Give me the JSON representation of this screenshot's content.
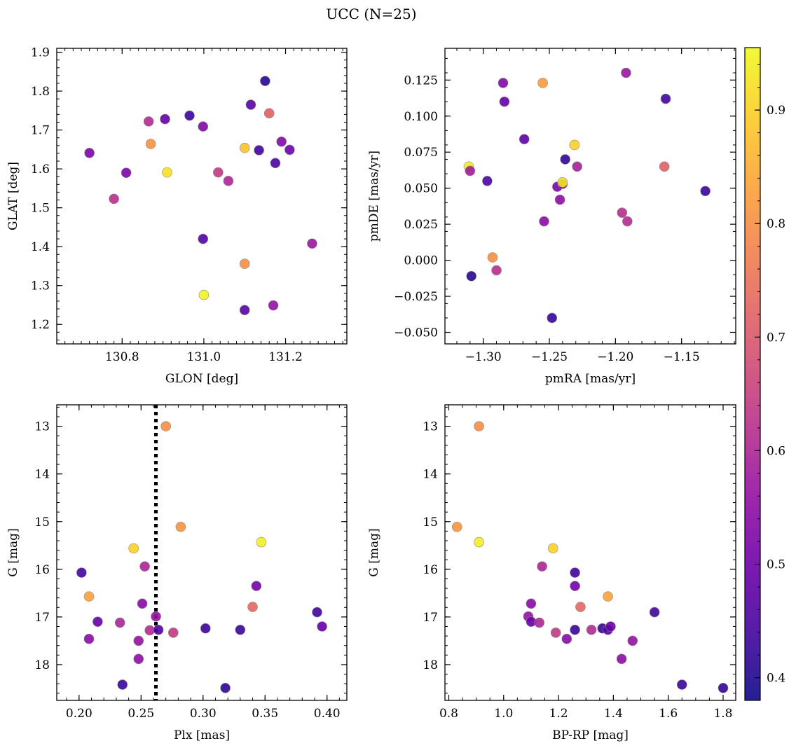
{
  "figure_title": "UCC (N=25)",
  "colorbar": {
    "range": [
      0.38,
      0.955
    ],
    "ticks": [
      0.4,
      0.5,
      0.6,
      0.7,
      0.8,
      0.9
    ],
    "tick_labels": [
      "0.4",
      "0.5",
      "0.6",
      "0.7",
      "0.8",
      "0.9"
    ],
    "colormap": "plasma",
    "point_edge_color": "#8c8c8c"
  },
  "chart_data": [
    {
      "type": "scatter",
      "xlabel": "GLON [deg]",
      "ylabel": "GLAT [deg]",
      "xlim": [
        130.64,
        131.35
      ],
      "ylim": [
        1.15,
        1.91
      ],
      "y_inverted": false,
      "x_ticks": [
        130.8,
        131.0,
        131.2
      ],
      "x_tick_labels": [
        "130.8",
        "131.0",
        "131.2"
      ],
      "y_ticks": [
        1.2,
        1.3,
        1.4,
        1.5,
        1.6,
        1.7,
        1.8,
        1.9
      ],
      "y_tick_labels": [
        "1.2",
        "1.3",
        "1.4",
        "1.5",
        "1.6",
        "1.7",
        "1.8",
        "1.9"
      ],
      "points": [
        {
          "x": 130.72,
          "y": 1.641,
          "c": 0.52
        },
        {
          "x": 130.78,
          "y": 1.523,
          "c": 0.62
        },
        {
          "x": 130.81,
          "y": 1.59,
          "c": 0.52
        },
        {
          "x": 130.865,
          "y": 1.722,
          "c": 0.61
        },
        {
          "x": 130.87,
          "y": 1.664,
          "c": 0.81
        },
        {
          "x": 130.905,
          "y": 1.728,
          "c": 0.49
        },
        {
          "x": 130.91,
          "y": 1.591,
          "c": 0.92
        },
        {
          "x": 130.965,
          "y": 1.737,
          "c": 0.43
        },
        {
          "x": 130.998,
          "y": 1.709,
          "c": 0.53
        },
        {
          "x": 130.998,
          "y": 1.42,
          "c": 0.46
        },
        {
          "x": 131.0,
          "y": 1.276,
          "c": 0.945
        },
        {
          "x": 131.035,
          "y": 1.591,
          "c": 0.64
        },
        {
          "x": 131.06,
          "y": 1.569,
          "c": 0.6
        },
        {
          "x": 131.1,
          "y": 1.654,
          "c": 0.88
        },
        {
          "x": 131.1,
          "y": 1.356,
          "c": 0.8
        },
        {
          "x": 131.1,
          "y": 1.237,
          "c": 0.47
        },
        {
          "x": 131.115,
          "y": 1.765,
          "c": 0.47
        },
        {
          "x": 131.135,
          "y": 1.648,
          "c": 0.44
        },
        {
          "x": 131.15,
          "y": 1.826,
          "c": 0.41
        },
        {
          "x": 131.16,
          "y": 1.743,
          "c": 0.72
        },
        {
          "x": 131.17,
          "y": 1.249,
          "c": 0.56
        },
        {
          "x": 131.175,
          "y": 1.615,
          "c": 0.45
        },
        {
          "x": 131.19,
          "y": 1.67,
          "c": 0.53
        },
        {
          "x": 131.21,
          "y": 1.649,
          "c": 0.5
        },
        {
          "x": 131.265,
          "y": 1.408,
          "c": 0.57
        }
      ]
    },
    {
      "type": "scatter",
      "xlabel": "pmRA [mas/yr]",
      "ylabel": "pmDE [mas/yr]",
      "xlim": [
        -1.329,
        -1.109
      ],
      "ylim": [
        -0.058,
        0.147
      ],
      "y_inverted": false,
      "x_ticks": [
        -1.3,
        -1.25,
        -1.2,
        -1.15
      ],
      "x_tick_labels": [
        "−1.30",
        "−1.25",
        "−1.20",
        "−1.15"
      ],
      "y_ticks": [
        -0.05,
        -0.025,
        0.0,
        0.025,
        0.05,
        0.075,
        0.1,
        0.125
      ],
      "y_tick_labels": [
        "−0.050",
        "−0.025",
        "0.000",
        "0.025",
        "0.050",
        "0.075",
        "0.100",
        "0.125"
      ],
      "points": [
        {
          "x": -1.311,
          "y": 0.065,
          "c": 0.935
        },
        {
          "x": -1.31,
          "y": 0.062,
          "c": 0.58
        },
        {
          "x": -1.309,
          "y": -0.011,
          "c": 0.41
        },
        {
          "x": -1.297,
          "y": 0.055,
          "c": 0.45
        },
        {
          "x": -1.293,
          "y": 0.002,
          "c": 0.8
        },
        {
          "x": -1.29,
          "y": -0.007,
          "c": 0.62
        },
        {
          "x": -1.285,
          "y": 0.123,
          "c": 0.53
        },
        {
          "x": -1.284,
          "y": 0.11,
          "c": 0.49
        },
        {
          "x": -1.269,
          "y": 0.084,
          "c": 0.48
        },
        {
          "x": -1.255,
          "y": 0.123,
          "c": 0.82
        },
        {
          "x": -1.254,
          "y": 0.027,
          "c": 0.55
        },
        {
          "x": -1.248,
          "y": -0.04,
          "c": 0.43
        },
        {
          "x": -1.244,
          "y": 0.051,
          "c": 0.52
        },
        {
          "x": -1.242,
          "y": 0.042,
          "c": 0.55
        },
        {
          "x": -1.24,
          "y": 0.053,
          "c": 0.5
        },
        {
          "x": -1.24,
          "y": 0.054,
          "c": 0.93
        },
        {
          "x": -1.238,
          "y": 0.07,
          "c": 0.42
        },
        {
          "x": -1.231,
          "y": 0.08,
          "c": 0.9
        },
        {
          "x": -1.229,
          "y": 0.065,
          "c": 0.59
        },
        {
          "x": -1.195,
          "y": 0.033,
          "c": 0.62
        },
        {
          "x": -1.192,
          "y": 0.13,
          "c": 0.57
        },
        {
          "x": -1.191,
          "y": 0.027,
          "c": 0.61
        },
        {
          "x": -1.163,
          "y": 0.065,
          "c": 0.72
        },
        {
          "x": -1.162,
          "y": 0.112,
          "c": 0.44
        },
        {
          "x": -1.132,
          "y": 0.048,
          "c": 0.43
        }
      ]
    },
    {
      "type": "scatter",
      "xlabel": "Plx [mas]",
      "ylabel": "G [mag]",
      "xlim": [
        0.182,
        0.416
      ],
      "ylim": [
        12.55,
        18.75
      ],
      "y_inverted": true,
      "x_ticks": [
        0.2,
        0.25,
        0.3,
        0.35,
        0.4
      ],
      "x_tick_labels": [
        "0.20",
        "0.25",
        "0.30",
        "0.35",
        "0.40"
      ],
      "y_ticks": [
        13,
        14,
        15,
        16,
        17,
        18
      ],
      "y_tick_labels": [
        "13",
        "14",
        "15",
        "16",
        "17",
        "18"
      ],
      "vline": {
        "x": 0.262,
        "style": "dotted",
        "color": "#000000"
      },
      "points": [
        {
          "x": 0.202,
          "y": 16.07,
          "c": 0.44
        },
        {
          "x": 0.208,
          "y": 16.57,
          "c": 0.83
        },
        {
          "x": 0.208,
          "y": 17.46,
          "c": 0.54
        },
        {
          "x": 0.215,
          "y": 17.1,
          "c": 0.49
        },
        {
          "x": 0.233,
          "y": 17.12,
          "c": 0.6
        },
        {
          "x": 0.235,
          "y": 18.42,
          "c": 0.43
        },
        {
          "x": 0.244,
          "y": 15.56,
          "c": 0.9
        },
        {
          "x": 0.248,
          "y": 17.5,
          "c": 0.56
        },
        {
          "x": 0.248,
          "y": 17.88,
          "c": 0.55
        },
        {
          "x": 0.251,
          "y": 16.72,
          "c": 0.54
        },
        {
          "x": 0.253,
          "y": 15.94,
          "c": 0.6
        },
        {
          "x": 0.257,
          "y": 17.28,
          "c": 0.61
        },
        {
          "x": 0.262,
          "y": 16.99,
          "c": 0.56
        },
        {
          "x": 0.264,
          "y": 17.27,
          "c": 0.46
        },
        {
          "x": 0.27,
          "y": 13.0,
          "c": 0.8
        },
        {
          "x": 0.276,
          "y": 17.33,
          "c": 0.64
        },
        {
          "x": 0.282,
          "y": 15.11,
          "c": 0.81
        },
        {
          "x": 0.302,
          "y": 17.24,
          "c": 0.43
        },
        {
          "x": 0.318,
          "y": 18.49,
          "c": 0.42
        },
        {
          "x": 0.33,
          "y": 17.27,
          "c": 0.43
        },
        {
          "x": 0.34,
          "y": 16.79,
          "c": 0.73
        },
        {
          "x": 0.343,
          "y": 16.35,
          "c": 0.51
        },
        {
          "x": 0.347,
          "y": 15.43,
          "c": 0.94
        },
        {
          "x": 0.392,
          "y": 16.9,
          "c": 0.44
        },
        {
          "x": 0.396,
          "y": 17.2,
          "c": 0.49
        }
      ]
    },
    {
      "type": "scatter",
      "xlabel": "BP-RP [mag]",
      "ylabel": "G [mag]",
      "xlim": [
        0.786,
        1.846
      ],
      "ylim": [
        12.55,
        18.75
      ],
      "y_inverted": true,
      "x_ticks": [
        0.8,
        1.0,
        1.2,
        1.4,
        1.6,
        1.8
      ],
      "x_tick_labels": [
        "0.8",
        "1.0",
        "1.2",
        "1.4",
        "1.6",
        "1.8"
      ],
      "y_ticks": [
        13,
        14,
        15,
        16,
        17,
        18
      ],
      "y_tick_labels": [
        "13",
        "14",
        "15",
        "16",
        "17",
        "18"
      ],
      "points": [
        {
          "x": 0.83,
          "y": 15.11,
          "c": 0.81
        },
        {
          "x": 0.91,
          "y": 13.0,
          "c": 0.8
        },
        {
          "x": 0.91,
          "y": 15.43,
          "c": 0.94
        },
        {
          "x": 1.09,
          "y": 16.99,
          "c": 0.56
        },
        {
          "x": 1.1,
          "y": 16.72,
          "c": 0.54
        },
        {
          "x": 1.1,
          "y": 17.1,
          "c": 0.49
        },
        {
          "x": 1.13,
          "y": 17.12,
          "c": 0.6
        },
        {
          "x": 1.14,
          "y": 15.94,
          "c": 0.6
        },
        {
          "x": 1.18,
          "y": 15.56,
          "c": 0.9
        },
        {
          "x": 1.19,
          "y": 17.33,
          "c": 0.64
        },
        {
          "x": 1.23,
          "y": 17.46,
          "c": 0.54
        },
        {
          "x": 1.26,
          "y": 16.07,
          "c": 0.44
        },
        {
          "x": 1.26,
          "y": 16.35,
          "c": 0.51
        },
        {
          "x": 1.26,
          "y": 17.27,
          "c": 0.43
        },
        {
          "x": 1.28,
          "y": 16.79,
          "c": 0.73
        },
        {
          "x": 1.32,
          "y": 17.27,
          "c": 0.61
        },
        {
          "x": 1.36,
          "y": 17.24,
          "c": 0.43
        },
        {
          "x": 1.38,
          "y": 16.57,
          "c": 0.83
        },
        {
          "x": 1.38,
          "y": 17.27,
          "c": 0.46
        },
        {
          "x": 1.39,
          "y": 17.2,
          "c": 0.49
        },
        {
          "x": 1.43,
          "y": 17.88,
          "c": 0.55
        },
        {
          "x": 1.47,
          "y": 17.5,
          "c": 0.56
        },
        {
          "x": 1.55,
          "y": 16.9,
          "c": 0.44
        },
        {
          "x": 1.65,
          "y": 18.42,
          "c": 0.43
        },
        {
          "x": 1.8,
          "y": 18.49,
          "c": 0.42
        }
      ]
    }
  ]
}
